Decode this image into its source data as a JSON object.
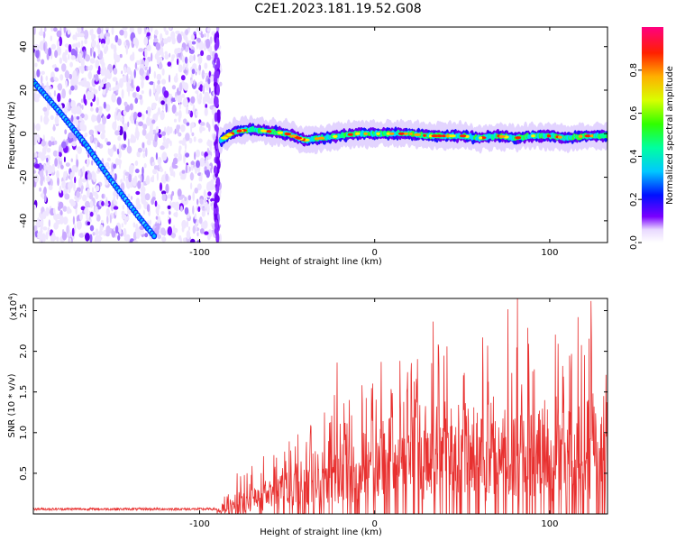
{
  "title": "C2E1.2023.181.19.52.G08",
  "chart_data": [
    {
      "type": "heatmap",
      "title": "",
      "xlabel": "Height of straight line (km)",
      "ylabel": "Frequency (Hz)",
      "xlim": [
        -195,
        133
      ],
      "ylim": [
        -50,
        49
      ],
      "xticks": [
        -100,
        0,
        100
      ],
      "yticks": [
        -40,
        -20,
        0,
        20,
        40
      ],
      "noise_region_x": [
        -195,
        -88
      ],
      "diagonal_trace": [
        [
          -195,
          24
        ],
        [
          -180,
          10
        ],
        [
          -165,
          -5
        ],
        [
          -150,
          -22
        ],
        [
          -135,
          -38
        ],
        [
          -126,
          -47
        ]
      ],
      "signal_band": [
        [
          -88,
          -3
        ],
        [
          -80,
          1
        ],
        [
          -70,
          2
        ],
        [
          -60,
          1
        ],
        [
          -50,
          0
        ],
        [
          -40,
          -3
        ],
        [
          -30,
          -2
        ],
        [
          -20,
          -1
        ],
        [
          -10,
          0
        ],
        [
          0,
          0
        ],
        [
          10,
          0
        ],
        [
          20,
          0
        ],
        [
          30,
          -1
        ],
        [
          40,
          -1
        ],
        [
          50,
          -1
        ],
        [
          60,
          -2
        ],
        [
          70,
          -1
        ],
        [
          80,
          -2
        ],
        [
          90,
          -1
        ],
        [
          100,
          -1
        ],
        [
          110,
          -2
        ],
        [
          120,
          -1
        ],
        [
          133,
          -1
        ]
      ],
      "colorbar": {
        "label": "Normalized spectral amplitude",
        "range": [
          0,
          1
        ],
        "ticks": [
          "0.0",
          "0.2",
          "0.4",
          "0.6",
          "0.8"
        ],
        "tick_values": [
          0,
          0.2,
          0.4,
          0.6,
          0.8
        ]
      }
    },
    {
      "type": "line",
      "title": "",
      "xlabel": "Height of straight line (km)",
      "ylabel": "SNR (10 * v/v)",
      "y_multiplier_base": "(x10",
      "y_multiplier_exp": "4",
      "y_multiplier_close": ")",
      "xlim": [
        -195,
        133
      ],
      "ylim": [
        0,
        2.65
      ],
      "xticks": [
        -100,
        0,
        100
      ],
      "yticks": [
        "0.5",
        "1.0",
        "1.5",
        "2.0",
        "2.5"
      ],
      "ytick_values": [
        0.5,
        1.0,
        1.5,
        2.0,
        2.5
      ],
      "color": "#e8302f",
      "envelope": [
        [
          -195,
          0.06
        ],
        [
          -90,
          0.06
        ],
        [
          -80,
          0.2
        ],
        [
          -70,
          0.3
        ],
        [
          -60,
          0.4
        ],
        [
          -50,
          0.55
        ],
        [
          -40,
          0.65
        ],
        [
          -30,
          0.75
        ],
        [
          -20,
          0.85
        ],
        [
          -10,
          0.95
        ],
        [
          0,
          1.05
        ],
        [
          10,
          1.15
        ],
        [
          20,
          1.25
        ],
        [
          30,
          1.3
        ],
        [
          40,
          1.35
        ],
        [
          50,
          1.4
        ],
        [
          60,
          1.4
        ],
        [
          70,
          1.4
        ],
        [
          80,
          1.35
        ],
        [
          90,
          1.35
        ],
        [
          100,
          1.3
        ],
        [
          110,
          1.3
        ],
        [
          120,
          1.35
        ],
        [
          133,
          1.35
        ]
      ],
      "amplitude": [
        [
          -195,
          0.02
        ],
        [
          -90,
          0.02
        ],
        [
          -80,
          0.2
        ],
        [
          -60,
          0.3
        ],
        [
          -40,
          0.45
        ],
        [
          -20,
          0.55
        ],
        [
          0,
          0.65
        ],
        [
          20,
          0.75
        ],
        [
          40,
          0.9
        ],
        [
          60,
          1.0
        ],
        [
          80,
          1.0
        ],
        [
          100,
          0.95
        ],
        [
          120,
          0.9
        ],
        [
          133,
          0.85
        ]
      ]
    }
  ]
}
